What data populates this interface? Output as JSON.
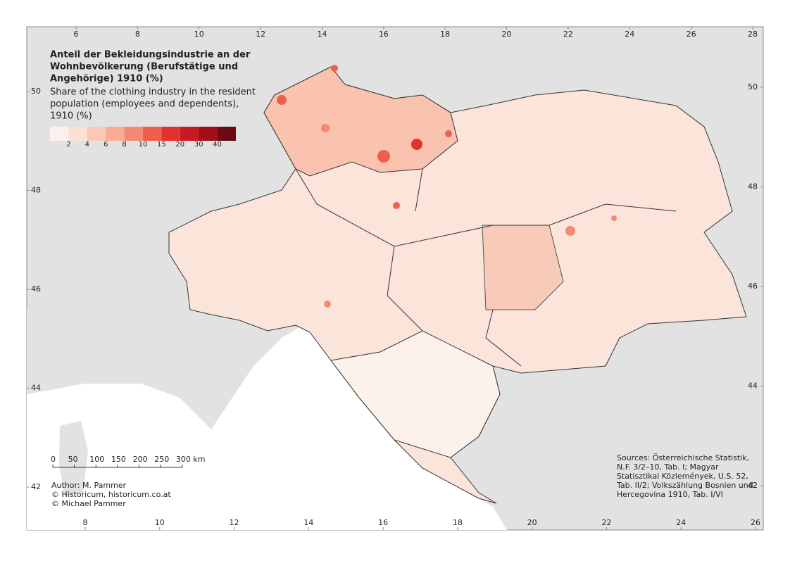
{
  "title_lines": [
    "Anteil der Bekleidungsindustrie an der",
    "Wohnbevölkerung (Berufstätige und",
    "Angehörige) 1910 (%)"
  ],
  "subtitle_lines": [
    "Share of the clothing industry in the resident",
    "population (employees and dependents),",
    "1910 (%)"
  ],
  "legend": {
    "colors": [
      "#fdf0ec",
      "#fce0d6",
      "#fbc8b5",
      "#f9ab95",
      "#f58a72",
      "#ef5f4b",
      "#e2322c",
      "#c61b22",
      "#9e0f18",
      "#6b0a10"
    ],
    "breaks": [
      2,
      4,
      6,
      8,
      10,
      15,
      20,
      30,
      40
    ]
  },
  "graticule": {
    "top": [
      6,
      8,
      10,
      12,
      14,
      16,
      18,
      20,
      22,
      24,
      26,
      28
    ],
    "bottom": [
      8,
      10,
      12,
      14,
      16,
      18,
      20,
      22,
      24,
      26
    ],
    "left": [
      50,
      48,
      46,
      44,
      42
    ],
    "right": [
      50,
      48,
      46,
      44,
      42
    ]
  },
  "scale_bar": {
    "ticks": [
      0,
      50,
      100,
      150,
      200,
      250,
      {
        "value": 300,
        "label": "300 km"
      }
    ]
  },
  "credits": [
    "Author: M. Pammer",
    "© Historicum, historicum.co.at",
    "© Michael Pammer"
  ],
  "sources": [
    "Sources: Österreichische Statistik,",
    "N.F. 3/2–10, Tab. I; Magyar",
    "Statisztikai Közlemények, U.S. 52,",
    "Tab. II/2; Volkszählung Bosnien und",
    "Hercegovina 1910, Tab. I/VI"
  ]
}
